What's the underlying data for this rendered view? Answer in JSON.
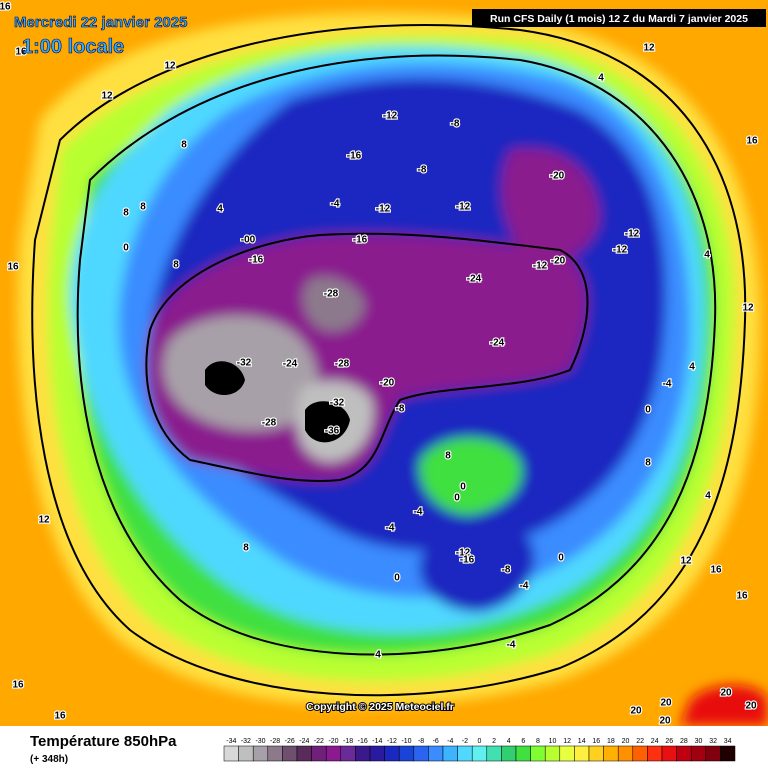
{
  "header": {
    "date": "Mercredi 22 janvier 2025",
    "time": "1:00 locale",
    "run": "Run CFS Daily (1 mois) 12 Z du Mardi 7 janvier 2025"
  },
  "copyright": "Copyright © 2025 Meteociel.fr",
  "footer": {
    "title": "Température 850hPa",
    "lead": "(+ 348h)"
  },
  "legend": {
    "ticks": [
      -34,
      -32,
      -30,
      -28,
      -26,
      -24,
      -22,
      -20,
      -18,
      -16,
      -14,
      -12,
      -10,
      -8,
      -6,
      -4,
      -2,
      0,
      2,
      4,
      6,
      8,
      10,
      12,
      14,
      16,
      18,
      20,
      22,
      24,
      26,
      28,
      30,
      32,
      34
    ],
    "colors": [
      "#d8d8d8",
      "#bfbfbf",
      "#a8a0a8",
      "#8c7a8c",
      "#6e4f6e",
      "#5a2a5a",
      "#70207a",
      "#8a1a8e",
      "#6a2a9a",
      "#3a1a8a",
      "#2a1aa0",
      "#1a28c0",
      "#1a44d8",
      "#2a64f0",
      "#3a8cff",
      "#3cb4ff",
      "#50d8ff",
      "#60f0f0",
      "#40e0b0",
      "#30d070",
      "#40e040",
      "#80ff30",
      "#b8ff30",
      "#e8ff40",
      "#fff040",
      "#ffd020",
      "#ffb000",
      "#ff9000",
      "#ff6000",
      "#ff3010",
      "#e81010",
      "#c00010",
      "#a00010",
      "#800010",
      "#200000"
    ]
  },
  "contour_labels": [
    "-12",
    "-8",
    "-16",
    "-8",
    "-20",
    "-4",
    "-12",
    "-12",
    "-16",
    "-12",
    "-12",
    "-12",
    "-20",
    "-24",
    "-28",
    "-24",
    "-32",
    "-24",
    "-28",
    "-20",
    "-8",
    "-32",
    "-28",
    "-36",
    "12",
    "4",
    "12",
    "12",
    "8",
    "16",
    "4",
    "8",
    "8",
    "0",
    "-00",
    "-16",
    "8",
    "16",
    "4",
    "12",
    "4",
    "-4",
    "0",
    "8",
    "8",
    "0",
    "0",
    "4",
    "-4",
    "-4",
    "12",
    "8",
    "-12",
    "-16",
    "0",
    "-8",
    "12",
    "16",
    "0",
    "-4",
    "16",
    "4",
    "-4",
    "16",
    "16",
    "20",
    "20",
    "20",
    "20",
    "20",
    "16",
    "16"
  ]
}
